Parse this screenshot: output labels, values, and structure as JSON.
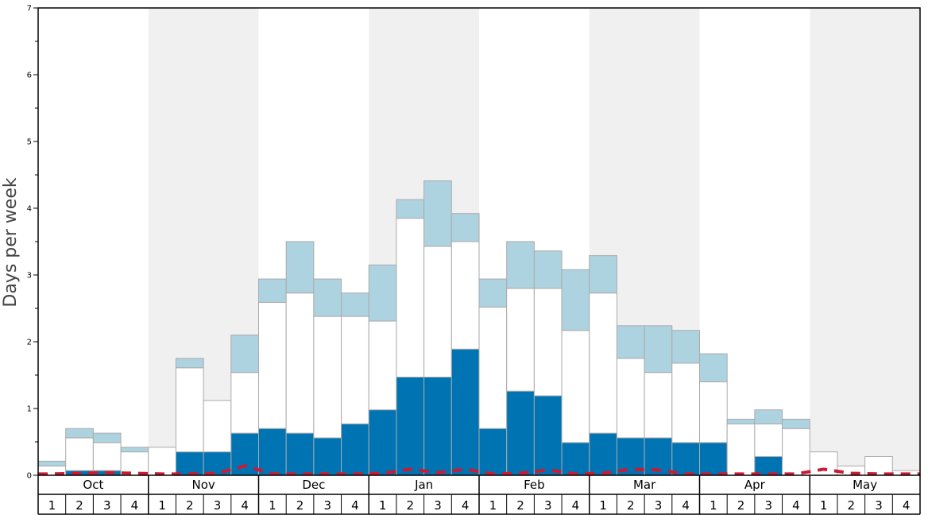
{
  "chart_data": {
    "type": "bar",
    "stacked": true,
    "xlabel": "",
    "ylabel": "Days per week",
    "ylim": [
      0,
      7
    ],
    "yticks": [
      0,
      1,
      2,
      3,
      4,
      5,
      6,
      7
    ],
    "grid": false,
    "legend": "none",
    "months": [
      "Oct",
      "Nov",
      "Dec",
      "Jan",
      "Feb",
      "Mar",
      "Apr",
      "May"
    ],
    "weeks": [
      "1",
      "2",
      "3",
      "4"
    ],
    "alternate_month_shading": true,
    "colors": {
      "dark": "#0073b3",
      "white": "#ffffff",
      "light": "#aed3e0",
      "line": "#cc1a33",
      "shading": "#f0f0f0",
      "bar_border": "#aaaaaa"
    },
    "series": [
      {
        "values": [
          0.0,
          0.07,
          0.07,
          0.0,
          0.0,
          0.35,
          0.35,
          0.63,
          0.7,
          0.63,
          0.56,
          0.77,
          0.98,
          1.47,
          1.47,
          1.89,
          0.7,
          1.26,
          1.19,
          0.49,
          0.63,
          0.56,
          0.56,
          0.49,
          0.49,
          0.0,
          0.28,
          0.0,
          0.0,
          0.0,
          0.0,
          0.0
        ]
      },
      {
        "values": [
          0.14,
          0.49,
          0.42,
          0.35,
          0.42,
          1.26,
          0.77,
          0.91,
          1.89,
          2.1,
          1.82,
          1.61,
          1.33,
          2.38,
          1.96,
          1.61,
          1.82,
          1.54,
          1.61,
          1.68,
          2.1,
          1.19,
          0.98,
          1.19,
          0.91,
          0.77,
          0.49,
          0.7,
          0.35,
          0.14,
          0.28,
          0.07
        ]
      },
      {
        "values": [
          0.07,
          0.14,
          0.14,
          0.07,
          0.0,
          0.14,
          0.0,
          0.56,
          0.35,
          0.77,
          0.56,
          0.35,
          0.84,
          0.28,
          0.98,
          0.42,
          0.42,
          0.7,
          0.56,
          0.91,
          0.56,
          0.49,
          0.7,
          0.49,
          0.42,
          0.07,
          0.21,
          0.14,
          0.0,
          0.0,
          0.0,
          0.0
        ]
      },
      {
        "type": "line",
        "style": "dashed",
        "values": [
          0.02,
          0.03,
          0.04,
          0.03,
          0.02,
          0.02,
          0.03,
          0.14,
          0.02,
          0.02,
          0.02,
          0.02,
          0.03,
          0.09,
          0.04,
          0.09,
          0.02,
          0.03,
          0.08,
          0.02,
          0.03,
          0.09,
          0.08,
          0.02,
          0.02,
          0.02,
          0.02,
          0.02,
          0.09,
          0.03,
          0.02,
          0.02
        ]
      }
    ]
  }
}
